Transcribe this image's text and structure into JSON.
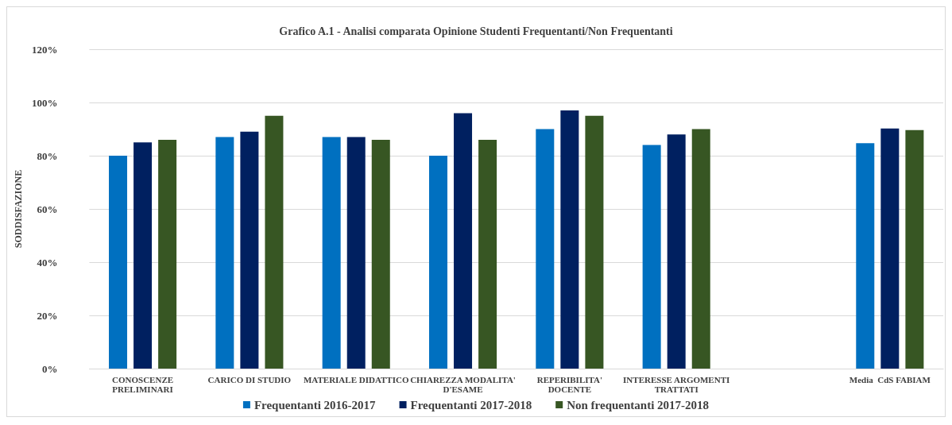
{
  "chart_data": {
    "type": "bar",
    "title": "Grafico A.1 - Analisi comparata Opinione Studenti Frequentanti/Non Frequentanti",
    "ylabel": "SODDISFAZIONE",
    "categories": [
      "CONOSCENZE\nPRELIMINARI",
      "CARICO DI STUDIO",
      "MATERIALE DIDATTICO",
      "CHIAREZZA MODALITA'\nD'ESAME",
      "REPERIBILITA'\nDOCENTE",
      "INTERESSE ARGOMENTI\nTRATTATI",
      null,
      "Media  CdS FABIAM"
    ],
    "series": [
      {
        "name": "Frequentanti 2016-2017",
        "color": "#0070c0",
        "values": [
          80,
          87,
          87,
          80,
          90,
          84,
          null,
          84.7
        ]
      },
      {
        "name": "Frequentanti 2017-2018",
        "color": "#002060",
        "values": [
          85,
          89,
          87,
          96,
          97,
          88,
          null,
          90.2
        ]
      },
      {
        "name": "Non frequentanti 2017-2018",
        "color": "#375623",
        "values": [
          86,
          95,
          86,
          86,
          95,
          90,
          null,
          89.6
        ]
      }
    ],
    "ylim": [
      0,
      120
    ],
    "yticks": [
      {
        "value": 0,
        "label": "0%"
      },
      {
        "value": 20,
        "label": "20%"
      },
      {
        "value": 40,
        "label": "40%"
      },
      {
        "value": 60,
        "label": "60%"
      },
      {
        "value": 80,
        "label": "80%"
      },
      {
        "value": 100,
        "label": "100%"
      },
      {
        "value": 120,
        "label": "120%"
      }
    ],
    "grid": true,
    "legend": "bottom"
  }
}
